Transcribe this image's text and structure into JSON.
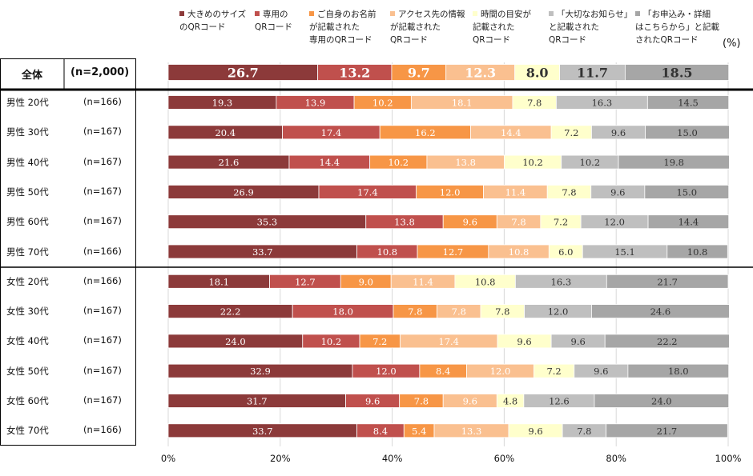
{
  "chart_data": {
    "type": "bar",
    "orientation": "horizontal-stacked-100",
    "unit_label": "(%)",
    "xlim": [
      0,
      100
    ],
    "x_ticks": [
      "0%",
      "20%",
      "40%",
      "60%",
      "80%",
      "100%"
    ],
    "legend": [
      {
        "name": "大きめのサイズ\nのQRコード",
        "color": "#8c3a3a"
      },
      {
        "name": "専用の\nQRコード",
        "color": "#c0504d"
      },
      {
        "name": "ご自身のお名前\nが記載された\n専用のQRコード",
        "color": "#f79646"
      },
      {
        "name": "アクセス先の情報\nが記載された\nQRコード",
        "color": "#fac090"
      },
      {
        "name": "時間の目安が\n記載された\nQRコード",
        "color": "#ffffcc"
      },
      {
        "name": "「大切なお知らせ」\nと記載された\nQRコード",
        "color": "#bfbfbf"
      },
      {
        "name": "「お申込み・詳細\nはこちらから」と記載\nされたQRコード",
        "color": "#a6a6a6"
      }
    ],
    "rows": [
      {
        "group": "全体",
        "n": "(n=2,000)",
        "values": [
          26.7,
          13.2,
          9.7,
          12.3,
          8.0,
          11.7,
          18.5
        ]
      },
      {
        "group": "男性  20代",
        "n": "(n=166)",
        "values": [
          19.3,
          13.9,
          10.2,
          18.1,
          7.8,
          16.3,
          14.5
        ]
      },
      {
        "group": "男性  30代",
        "n": "(n=167)",
        "values": [
          20.4,
          17.4,
          16.2,
          14.4,
          7.2,
          9.6,
          15.0
        ]
      },
      {
        "group": "男性  40代",
        "n": "(n=167)",
        "values": [
          21.6,
          14.4,
          10.2,
          13.8,
          10.2,
          10.2,
          19.8
        ]
      },
      {
        "group": "男性  50代",
        "n": "(n=167)",
        "values": [
          26.9,
          17.4,
          12.0,
          11.4,
          7.8,
          9.6,
          15.0
        ]
      },
      {
        "group": "男性  60代",
        "n": "(n=167)",
        "values": [
          35.3,
          13.8,
          9.6,
          7.8,
          7.2,
          12.0,
          14.4
        ]
      },
      {
        "group": "男性  70代",
        "n": "(n=166)",
        "values": [
          33.7,
          10.8,
          12.7,
          10.8,
          6.0,
          15.1,
          10.8
        ]
      },
      {
        "group": "女性  20代",
        "n": "(n=166)",
        "values": [
          18.1,
          12.7,
          9.0,
          11.4,
          10.8,
          16.3,
          21.7
        ]
      },
      {
        "group": "女性  30代",
        "n": "(n=167)",
        "values": [
          22.2,
          18.0,
          7.8,
          7.8,
          7.8,
          12.0,
          24.6
        ]
      },
      {
        "group": "女性  40代",
        "n": "(n=167)",
        "values": [
          24.0,
          10.2,
          7.2,
          17.4,
          9.6,
          9.6,
          22.2
        ]
      },
      {
        "group": "女性  50代",
        "n": "(n=167)",
        "values": [
          32.9,
          12.0,
          8.4,
          12.0,
          7.2,
          9.6,
          18.0
        ]
      },
      {
        "group": "女性  60代",
        "n": "(n=167)",
        "values": [
          31.7,
          9.6,
          7.8,
          9.6,
          4.8,
          12.6,
          24.0
        ]
      },
      {
        "group": "女性  70代",
        "n": "(n=166)",
        "values": [
          33.7,
          8.4,
          5.4,
          13.3,
          9.6,
          7.8,
          21.7
        ]
      }
    ]
  }
}
